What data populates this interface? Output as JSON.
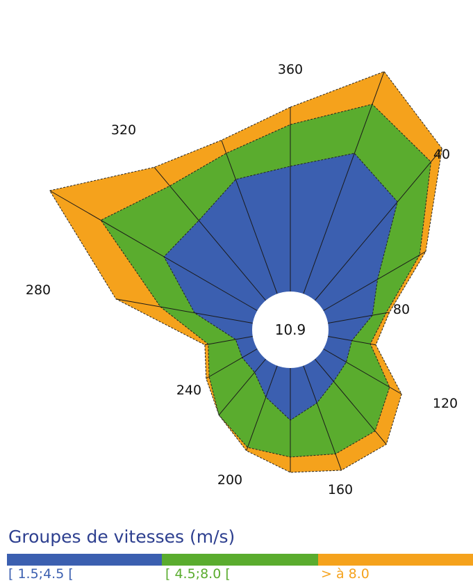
{
  "chart_data": {
    "type": "radar",
    "calm_label": "10.9",
    "direction_labels": [
      "360",
      "40",
      "80",
      "120",
      "160",
      "200",
      "240",
      "280",
      "320"
    ],
    "directions_deg": [
      0,
      20,
      40,
      60,
      80,
      100,
      120,
      140,
      160,
      180,
      200,
      220,
      240,
      260,
      280,
      300,
      320,
      340
    ],
    "series": [
      {
        "name": "[ 1.5;4.5 [",
        "color": "#3b5fb0",
        "values": [
          235,
          270,
          240,
          145,
          120,
          90,
          93,
          97,
          112,
          130,
          103,
          80,
          80,
          80,
          140,
          210,
          205,
          230
        ]
      },
      {
        "name": "[ 4.5;8.0 [",
        "color": "#5aac2e",
        "values": [
          295,
          345,
          315,
          215,
          140,
          117,
          165,
          190,
          190,
          183,
          180,
          160,
          135,
          120,
          190,
          315,
          270,
          270
        ]
      },
      {
        "name": "> à 8.0",
        "color": "#f5a21c",
        "values": [
          320,
          395,
          340,
          225,
          145,
          125,
          185,
          215,
          215,
          205,
          185,
          160,
          140,
          125,
          255,
          400,
          305,
          290
        ]
      }
    ]
  },
  "legend": {
    "title": "Groupes de vitesses (m/s)",
    "items": [
      {
        "label": "[ 1.5;4.5 [",
        "color": "#3b5fb0"
      },
      {
        "label": "[ 4.5;8.0 [",
        "color": "#5aac2e"
      },
      {
        "label": "> à 8.0",
        "color": "#f5a21c"
      }
    ]
  }
}
